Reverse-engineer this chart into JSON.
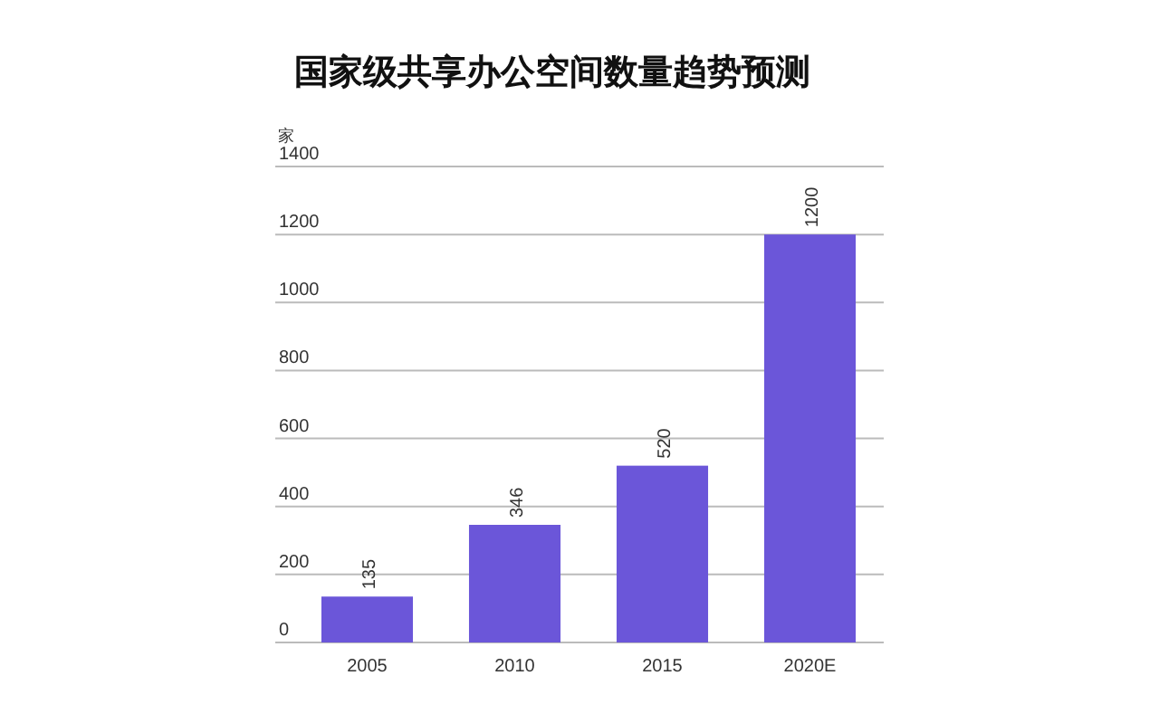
{
  "chart_data": {
    "type": "bar",
    "title": "国家级共享办公空间数量趋势预测",
    "ylabel": "家",
    "categories": [
      "2005",
      "2010",
      "2015",
      "2020E"
    ],
    "values": [
      135,
      346,
      520,
      1200
    ],
    "color": "#6b56d9",
    "ylim": [
      0,
      1400
    ],
    "yticks": [
      0,
      200,
      400,
      600,
      800,
      1000,
      1200,
      1400
    ],
    "grid": "y",
    "data_labels": true
  }
}
